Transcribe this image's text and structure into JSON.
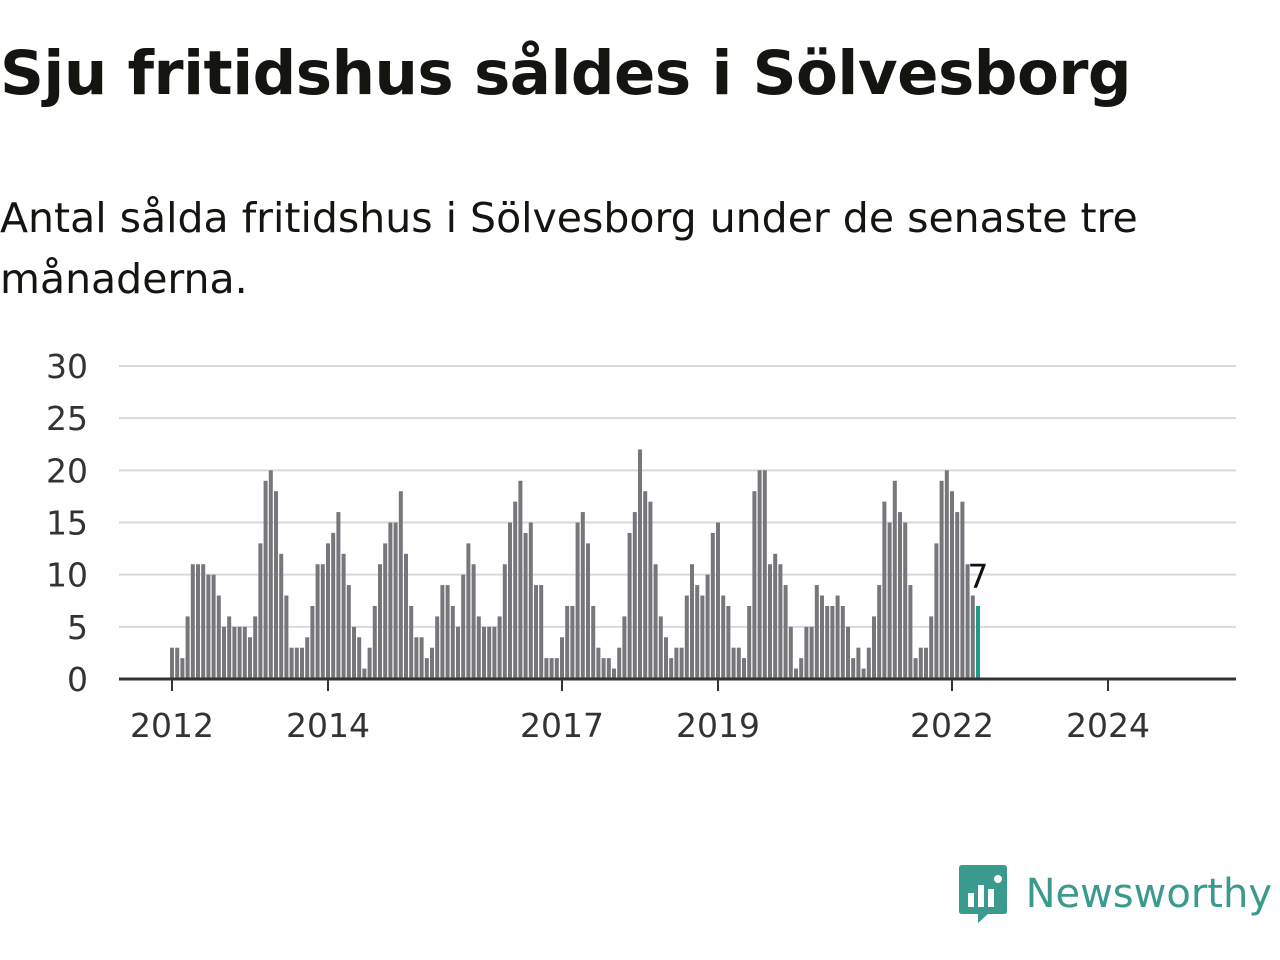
{
  "title": "Sju fritidshus såldes i Sölvesborg",
  "subtitle": "Antal sålda fritidshus i Sölvesborg under de senaste tre månaderna.",
  "brand": {
    "name": "Newsworthy",
    "color": "#3b9a8e"
  },
  "colors": {
    "bars": "#77767b",
    "highlight": "#1d9c8a"
  },
  "chart_data": {
    "type": "bar",
    "xlabel": "",
    "ylabel": "",
    "ylim": [
      0,
      30
    ],
    "yticks": [
      0,
      5,
      10,
      15,
      20,
      25,
      30
    ],
    "xticks": [
      {
        "label": "2012",
        "month": 12
      },
      {
        "label": "2014",
        "month": 42
      },
      {
        "label": "2017",
        "month": 87
      },
      {
        "label": "2019",
        "month": 117
      },
      {
        "label": "2022",
        "month": 162
      },
      {
        "label": "2024",
        "month": 192
      }
    ],
    "grid": true,
    "last_value_label": "7",
    "series": [
      {
        "values": [
          3,
          3,
          2,
          6,
          11,
          11,
          11,
          10,
          10,
          8,
          5,
          6,
          5,
          5,
          5,
          4,
          6,
          13,
          19,
          20,
          18,
          12,
          8,
          3,
          3,
          3,
          4,
          7,
          11,
          11,
          13,
          14,
          16,
          12,
          9,
          5,
          4,
          1,
          3,
          7,
          11,
          13,
          15,
          15,
          18,
          12,
          7,
          4,
          4,
          2,
          3,
          6,
          9,
          9,
          7,
          5,
          10,
          13,
          11,
          6,
          5,
          5,
          5,
          6,
          11,
          15,
          17,
          19,
          14,
          15,
          9,
          9,
          2,
          2,
          2,
          4,
          7,
          7,
          15,
          16,
          13,
          7,
          3,
          2,
          2,
          1,
          3,
          6,
          14,
          16,
          22,
          18,
          17,
          11,
          6,
          4,
          2,
          3,
          3,
          8,
          11,
          9,
          8,
          10,
          14,
          15,
          8,
          7,
          3,
          3,
          2,
          7,
          18,
          20,
          20,
          11,
          12,
          11,
          9,
          5,
          1,
          2,
          5,
          5,
          9,
          8,
          7,
          7,
          8,
          7,
          5,
          2,
          3,
          1,
          3,
          6,
          9,
          17,
          15,
          19,
          16,
          15,
          9,
          2,
          3,
          3,
          6,
          13,
          19,
          20,
          18,
          16,
          17,
          11,
          8,
          7
        ]
      }
    ]
  }
}
